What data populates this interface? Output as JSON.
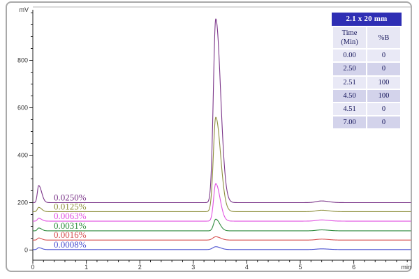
{
  "gradient_table": {
    "title": "2.1 x 20 mm",
    "columns": [
      "Time\n(Min)",
      "%B"
    ],
    "rows": [
      [
        "0.00",
        "0"
      ],
      [
        "2.50",
        "0"
      ],
      [
        "2.51",
        "100"
      ],
      [
        "4.50",
        "100"
      ],
      [
        "4.51",
        "0"
      ],
      [
        "7.00",
        "0"
      ]
    ],
    "colors": {
      "header_bg": "#2e2eb4",
      "header_text": "#ffffff",
      "row_light": "#e9e9f6",
      "row_dark": "#d3d3eb",
      "cell_text": "#14145a"
    }
  },
  "chart_data": {
    "type": "line",
    "title": "",
    "xlabel": "min",
    "ylabel": "mV",
    "xlim": [
      0,
      7.07
    ],
    "ylim": [
      0,
      1010
    ],
    "x_major_ticks": [
      0,
      1,
      2,
      3,
      4,
      5,
      6
    ],
    "x_minor_step": 0.2,
    "y_major_ticks": [
      0,
      200,
      400,
      600,
      800
    ],
    "y_minor_step": 50,
    "grid": false,
    "legend_position": "inline-left",
    "axis_color": "#222222",
    "frame_color": "#b6b6b6",
    "tick_label_color": "#333333",
    "main_peak_time_min": 3.42,
    "series": [
      {
        "name": "0.0250%",
        "color": "#7b3589",
        "baseline_mV": 200,
        "peaks": [
          {
            "t": 0.11,
            "mV": 272,
            "wl": 0.025,
            "wr": 0.055
          },
          {
            "t": 3.42,
            "mV": 975,
            "wl": 0.045,
            "wr": 0.09
          },
          {
            "t": 5.4,
            "mV": 207,
            "wl": 0.1,
            "wr": 0.13
          }
        ]
      },
      {
        "name": "0.0125%",
        "color": "#8e8f3d",
        "baseline_mV": 162,
        "peaks": [
          {
            "t": 0.11,
            "mV": 180,
            "wl": 0.025,
            "wr": 0.055
          },
          {
            "t": 3.42,
            "mV": 560,
            "wl": 0.045,
            "wr": 0.09
          },
          {
            "t": 5.4,
            "mV": 168,
            "wl": 0.1,
            "wr": 0.13
          }
        ]
      },
      {
        "name": "0.0063%",
        "color": "#e050e0",
        "baseline_mV": 122,
        "peaks": [
          {
            "t": 0.11,
            "mV": 134,
            "wl": 0.025,
            "wr": 0.055
          },
          {
            "t": 3.42,
            "mV": 280,
            "wl": 0.04,
            "wr": 0.08
          },
          {
            "t": 5.4,
            "mV": 127,
            "wl": 0.1,
            "wr": 0.13
          }
        ]
      },
      {
        "name": "0.0031%",
        "color": "#2e8b3d",
        "baseline_mV": 81,
        "peaks": [
          {
            "t": 0.11,
            "mV": 93,
            "wl": 0.025,
            "wr": 0.055
          },
          {
            "t": 3.42,
            "mV": 130,
            "wl": 0.04,
            "wr": 0.075
          },
          {
            "t": 5.4,
            "mV": 85,
            "wl": 0.1,
            "wr": 0.13
          }
        ]
      },
      {
        "name": "0.0016%",
        "color": "#d64f4f",
        "baseline_mV": 42,
        "peaks": [
          {
            "t": 0.11,
            "mV": 51,
            "wl": 0.025,
            "wr": 0.055
          },
          {
            "t": 3.42,
            "mV": 56,
            "wl": 0.055,
            "wr": 0.09
          },
          {
            "t": 5.4,
            "mV": 46,
            "wl": 0.1,
            "wr": 0.13
          }
        ]
      },
      {
        "name": "0.0008%",
        "color": "#4a50cf",
        "baseline_mV": 2,
        "peaks": [
          {
            "t": 0.11,
            "mV": 10,
            "wl": 0.025,
            "wr": 0.055
          },
          {
            "t": 3.42,
            "mV": 14,
            "wl": 0.055,
            "wr": 0.09
          },
          {
            "t": 5.4,
            "mV": 5,
            "wl": 0.1,
            "wr": 0.13
          }
        ]
      }
    ]
  }
}
